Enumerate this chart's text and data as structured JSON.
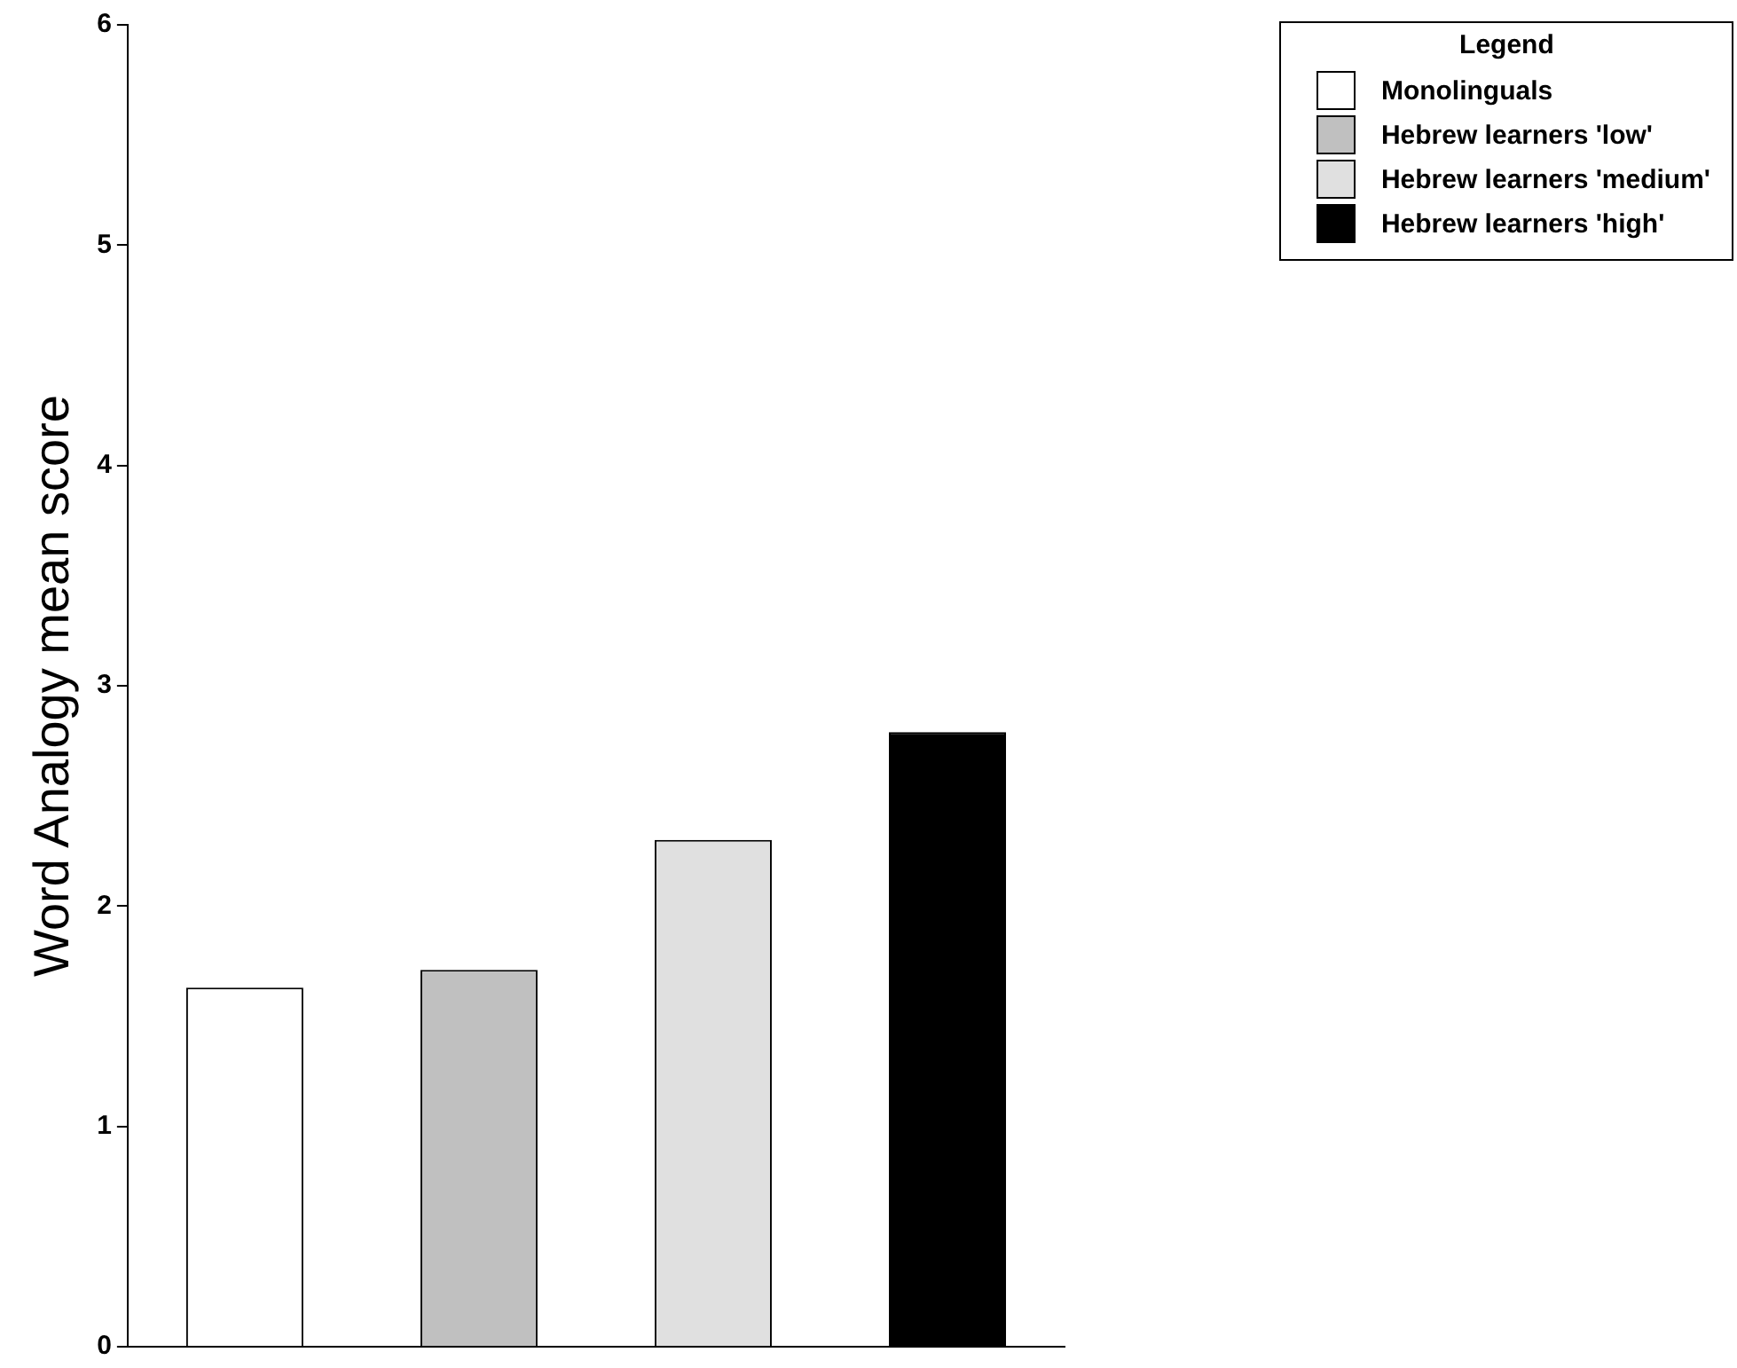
{
  "chart_data": {
    "type": "bar",
    "ylabel": "Word Analogy mean score",
    "legend_title": "Legend",
    "categories": [
      null,
      null,
      null,
      null
    ],
    "series": [
      {
        "name": "Monolinguals",
        "color": "#ffffff",
        "values": [
          1.63,
          null,
          null,
          null
        ]
      },
      {
        "name": "Hebrew learners 'low'",
        "color": "#c0c0c0",
        "values": [
          null,
          1.71,
          null,
          null
        ]
      },
      {
        "name": "Hebrew learners 'medium'",
        "color": "#e0e0e0",
        "values": [
          null,
          null,
          2.3,
          null
        ]
      },
      {
        "name": "Hebrew learners 'high'",
        "color": "#000000",
        "values": [
          null,
          null,
          null,
          2.79
        ]
      }
    ],
    "ylim": [
      0,
      6
    ],
    "yticks": [
      0,
      1,
      2,
      3,
      4,
      5,
      6
    ],
    "grid": false,
    "legend": "top right",
    "tick_labels": "y"
  }
}
